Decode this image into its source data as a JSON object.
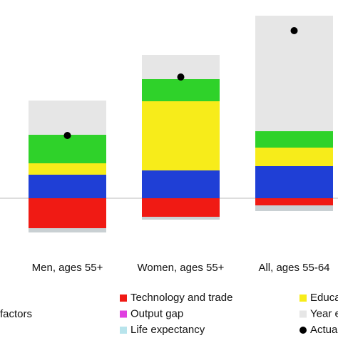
{
  "chart_data": {
    "type": "bar",
    "categories": [
      "Men, ages 55+",
      "Women, ages 55+",
      "All, ages 55-64"
    ],
    "series": [
      {
        "color": "#1f3fd6",
        "values": [
          3.3,
          3.9,
          4.5
        ]
      },
      {
        "color": "#f7ec1a",
        "values": [
          1.6,
          9.7,
          2.6
        ]
      },
      {
        "color": "#2fd22a",
        "values": [
          4.0,
          3.1,
          2.3
        ]
      },
      {
        "color": "#e6e6e6",
        "values": [
          4.8,
          3.4,
          16.2
        ]
      },
      {
        "color": "#f01a14",
        "values": [
          -4.2,
          -2.6,
          -1.0
        ]
      },
      {
        "color": "#c9d0d3",
        "values": [
          -0.6,
          -0.4,
          -0.8
        ]
      }
    ],
    "actual": {
      "color": "#000000",
      "values": [
        8.8,
        17.0,
        23.5
      ]
    },
    "ylim": [
      -5,
      27.8
    ],
    "legend_title": "factors",
    "legend": [
      {
        "label": "Technology and trade",
        "color": "#f01a14"
      },
      {
        "label": "Output gap",
        "color": "#e040e0"
      },
      {
        "label": "Life expectancy",
        "color": "#b8e4ec"
      },
      {
        "label": "Educa",
        "color": "#f7ec1a"
      },
      {
        "label": "Year e",
        "color": "#e6e6e6"
      },
      {
        "label": "Actua",
        "color": "#000000",
        "marker": "dot"
      }
    ]
  }
}
